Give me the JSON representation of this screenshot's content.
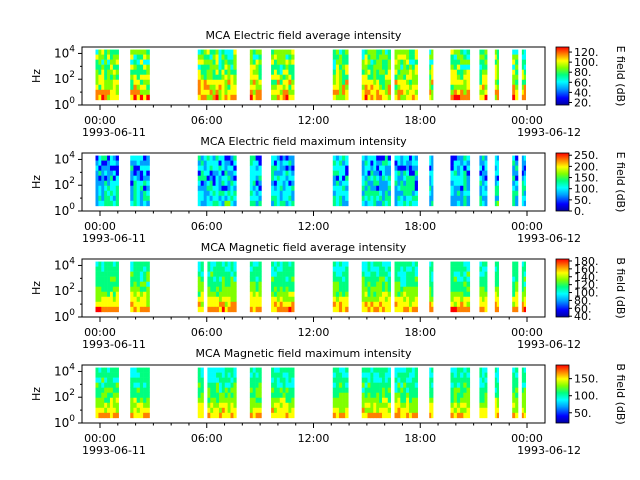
{
  "chart_data": [
    {
      "type": "heatmap",
      "title": "MCA  Electric field average intensity",
      "ylabel": "Hz",
      "ytick_labels": [
        "10^0",
        "10^2",
        "10^4"
      ],
      "ylim_log10": [
        0,
        4.5
      ],
      "xtick_labels": [
        "00:00",
        "06:00",
        "12:00",
        "18:00",
        "00:00"
      ],
      "xdate_start": "1993-06-11",
      "xdate_end": "1993-06-12",
      "colorbar_label": "E field (dB)",
      "colorbar_ticks": [
        "20.",
        "40.",
        "60.",
        "80.",
        "100.",
        "120."
      ],
      "colorbar_range": [
        15,
        130
      ],
      "data_segments_hours": [
        [
          0.7,
          1.9
        ],
        [
          2.5,
          3.5
        ],
        [
          6.0,
          8.0
        ],
        [
          8.7,
          9.3
        ],
        [
          9.8,
          11.0
        ],
        [
          13.0,
          13.8
        ],
        [
          14.5,
          16.0
        ],
        [
          16.2,
          17.4
        ],
        [
          18.0,
          18.2
        ],
        [
          19.1,
          20.1
        ],
        [
          20.6,
          21.0
        ],
        [
          21.4,
          21.6
        ],
        [
          22.3,
          22.6
        ],
        [
          22.8,
          23.0
        ]
      ]
    },
    {
      "type": "heatmap",
      "title": "MCA  Electric field maximum intensity",
      "ylabel": "Hz",
      "ytick_labels": [
        "10^0",
        "10^2",
        "10^4"
      ],
      "ylim_log10": [
        0,
        4.5
      ],
      "xtick_labels": [
        "00:00",
        "06:00",
        "12:00",
        "18:00",
        "00:00"
      ],
      "xdate_start": "1993-06-11",
      "xdate_end": "1993-06-12",
      "colorbar_label": "E field (dB)",
      "colorbar_ticks": [
        "0.",
        "50.",
        "100.",
        "150.",
        "200.",
        "250."
      ],
      "colorbar_range": [
        0,
        260
      ],
      "data_segments_hours": [
        [
          0.7,
          1.9
        ],
        [
          2.5,
          3.5
        ],
        [
          6.0,
          8.0
        ],
        [
          8.7,
          9.3
        ],
        [
          9.8,
          11.0
        ],
        [
          13.0,
          13.8
        ],
        [
          14.5,
          16.0
        ],
        [
          16.2,
          17.4
        ],
        [
          18.0,
          18.2
        ],
        [
          19.1,
          20.1
        ],
        [
          20.6,
          21.0
        ],
        [
          21.4,
          21.6
        ],
        [
          22.3,
          22.6
        ],
        [
          22.8,
          23.0
        ]
      ]
    },
    {
      "type": "heatmap",
      "title": "MCA  Magnetic field average intensity",
      "ylabel": "Hz",
      "ytick_labels": [
        "10^0",
        "10^2",
        "10^4"
      ],
      "ylim_log10": [
        0,
        4.5
      ],
      "xtick_labels": [
        "00:00",
        "06:00",
        "12:00",
        "18:00",
        "00:00"
      ],
      "xdate_start": "1993-06-11",
      "xdate_end": "1993-06-12",
      "colorbar_label": "B field (dB)",
      "colorbar_ticks": [
        "40.",
        "60.",
        "80.",
        "100.",
        "120.",
        "140.",
        "160.",
        "180."
      ],
      "colorbar_range": [
        38,
        185
      ],
      "data_segments_hours": [
        [
          0.7,
          1.9
        ],
        [
          2.5,
          3.5
        ],
        [
          6.0,
          6.3
        ],
        [
          6.5,
          8.0
        ],
        [
          8.7,
          9.3
        ],
        [
          9.8,
          11.0
        ],
        [
          13.0,
          13.8
        ],
        [
          14.5,
          16.0
        ],
        [
          16.2,
          17.4
        ],
        [
          18.0,
          18.2
        ],
        [
          19.1,
          20.1
        ],
        [
          20.6,
          21.0
        ],
        [
          21.4,
          21.6
        ],
        [
          22.3,
          22.6
        ],
        [
          22.8,
          23.0
        ]
      ]
    },
    {
      "type": "heatmap",
      "title": "MCA  Magnetic field maximum intensity",
      "ylabel": "Hz",
      "ytick_labels": [
        "10^0",
        "10^2",
        "10^4"
      ],
      "ylim_log10": [
        0,
        4.5
      ],
      "xtick_labels": [
        "00:00",
        "06:00",
        "12:00",
        "18:00",
        "00:00"
      ],
      "xdate_start": "1993-06-11",
      "xdate_end": "1993-06-12",
      "colorbar_label": "B field (dB)",
      "colorbar_ticks": [
        "50.",
        "100.",
        "150."
      ],
      "colorbar_range": [
        20,
        190
      ],
      "data_segments_hours": [
        [
          0.7,
          1.9
        ],
        [
          2.5,
          3.5
        ],
        [
          6.0,
          6.3
        ],
        [
          6.5,
          8.0
        ],
        [
          8.7,
          9.3
        ],
        [
          9.8,
          11.0
        ],
        [
          13.0,
          13.8
        ],
        [
          14.5,
          16.0
        ],
        [
          16.2,
          17.4
        ],
        [
          18.0,
          18.2
        ],
        [
          19.1,
          20.1
        ],
        [
          20.6,
          21.0
        ],
        [
          21.4,
          21.6
        ],
        [
          22.3,
          22.6
        ],
        [
          22.8,
          23.0
        ]
      ]
    }
  ],
  "colors": {
    "colormap": [
      "#0000a0",
      "#0000ff",
      "#00a0ff",
      "#00ffff",
      "#00ff80",
      "#80ff00",
      "#ffff00",
      "#ff8000",
      "#ff0000"
    ]
  }
}
